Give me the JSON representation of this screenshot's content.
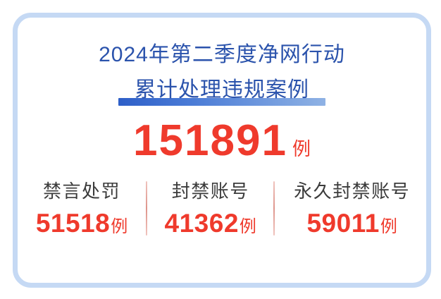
{
  "card": {
    "title_line1": "2024年第二季度净网行动",
    "title_line2": "累计处理违规案例",
    "total": {
      "value": "151891",
      "unit": "例"
    },
    "stats": [
      {
        "label": "禁言处罚",
        "value": "51518",
        "unit": "例"
      },
      {
        "label": "封禁账号",
        "value": "41362",
        "unit": "例"
      },
      {
        "label": "永久封禁账号",
        "value": "59011",
        "unit": "例"
      }
    ],
    "colors": {
      "title_blue": "#2B53AC",
      "accent_red": "#EF3A2C",
      "label_dark": "#3B3B3B",
      "card_border": "#C5D9F4",
      "underline_gradient_start": "#2E5FC8",
      "underline_gradient_end": "#8FB2E4",
      "divider_pink": "#DE958C"
    }
  },
  "chart_data": {
    "type": "table",
    "title": "2024年第二季度净网行动 累计处理违规案例",
    "total": 151891,
    "unit": "例",
    "categories": [
      "禁言处罚",
      "封禁账号",
      "永久封禁账号"
    ],
    "values": [
      51518,
      41362,
      59011
    ]
  }
}
